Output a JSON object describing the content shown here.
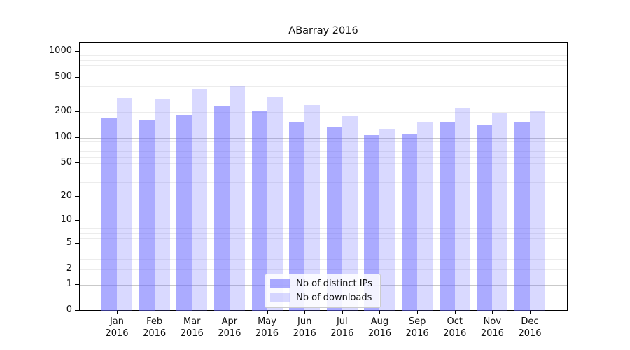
{
  "title": "ABarray 2016",
  "chart_data": {
    "type": "bar",
    "title": "ABarray 2016",
    "categories": [
      "Jan",
      "Feb",
      "Mar",
      "Apr",
      "May",
      "Jun",
      "Jul",
      "Aug",
      "Sep",
      "Oct",
      "Nov",
      "Dec"
    ],
    "category_year": "2016",
    "series": [
      {
        "name": "Nb of distinct IPs",
        "color": "rgba(102,102,255,0.55)",
        "values": [
          170,
          160,
          186,
          235,
          208,
          152,
          135,
          108,
          110,
          152,
          140,
          152
        ]
      },
      {
        "name": "Nb of downloads",
        "color": "rgba(102,102,255,0.25)",
        "values": [
          291,
          277,
          367,
          402,
          302,
          239,
          182,
          127,
          154,
          221,
          193,
          208
        ]
      }
    ],
    "y_ticks": [
      0,
      1,
      2,
      5,
      10,
      20,
      50,
      100,
      200,
      500,
      1000
    ],
    "y_scale": "log1p",
    "ylim": [
      0,
      1280
    ],
    "xlabel": "",
    "ylabel": "",
    "grid": true,
    "grid_major_color": "#c9c9c9",
    "grid_minor_color": "#ececec",
    "legend_position": "bottom-center"
  }
}
